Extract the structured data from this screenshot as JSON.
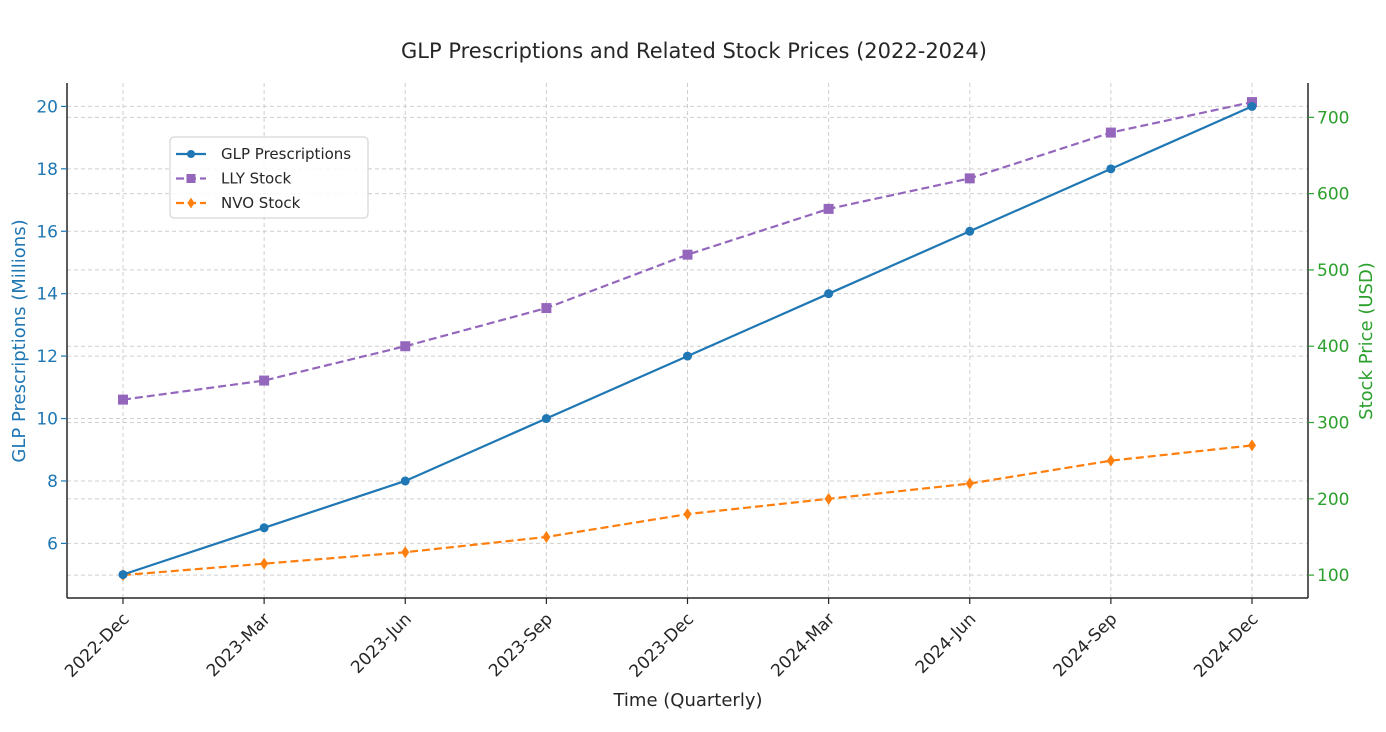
{
  "chart_data": {
    "type": "line",
    "title": "GLP Prescriptions and Related Stock Prices (2022-2024)",
    "xlabel": "Time (Quarterly)",
    "ylabel_left": "GLP Prescriptions (Millions)",
    "ylabel_right": "Stock Price (USD)",
    "categories": [
      "2022-Dec",
      "2023-Mar",
      "2023-Jun",
      "2023-Sep",
      "2023-Dec",
      "2024-Mar",
      "2024-Jun",
      "2024-Sep",
      "2024-Dec"
    ],
    "ylim_left": [
      4.25,
      20.75
    ],
    "ylim_right": [
      70,
      745
    ],
    "yticks_left": [
      6,
      8,
      10,
      12,
      14,
      16,
      18,
      20
    ],
    "yticks_right": [
      100,
      200,
      300,
      400,
      500,
      600,
      700
    ],
    "grid": true,
    "legend_position": "upper-left",
    "left_axis_color": "#1f77b4",
    "right_axis_color": "#2ca02c",
    "series": [
      {
        "name": "GLP Prescriptions",
        "axis": "left",
        "color": "#1f77b4",
        "linestyle": "solid",
        "marker": "circle",
        "values": [
          5,
          6.5,
          8,
          10,
          12,
          14,
          16,
          18,
          20
        ]
      },
      {
        "name": "LLY Stock",
        "axis": "right",
        "color": "#9467bd",
        "linestyle": "dashed",
        "marker": "square",
        "values": [
          330,
          355,
          400,
          450,
          520,
          580,
          620,
          680,
          720
        ]
      },
      {
        "name": "NVO Stock",
        "axis": "right",
        "color": "#ff7f0e",
        "linestyle": "dashed",
        "marker": "diamond",
        "values": [
          100,
          115,
          130,
          150,
          180,
          200,
          220,
          250,
          270
        ]
      }
    ]
  }
}
